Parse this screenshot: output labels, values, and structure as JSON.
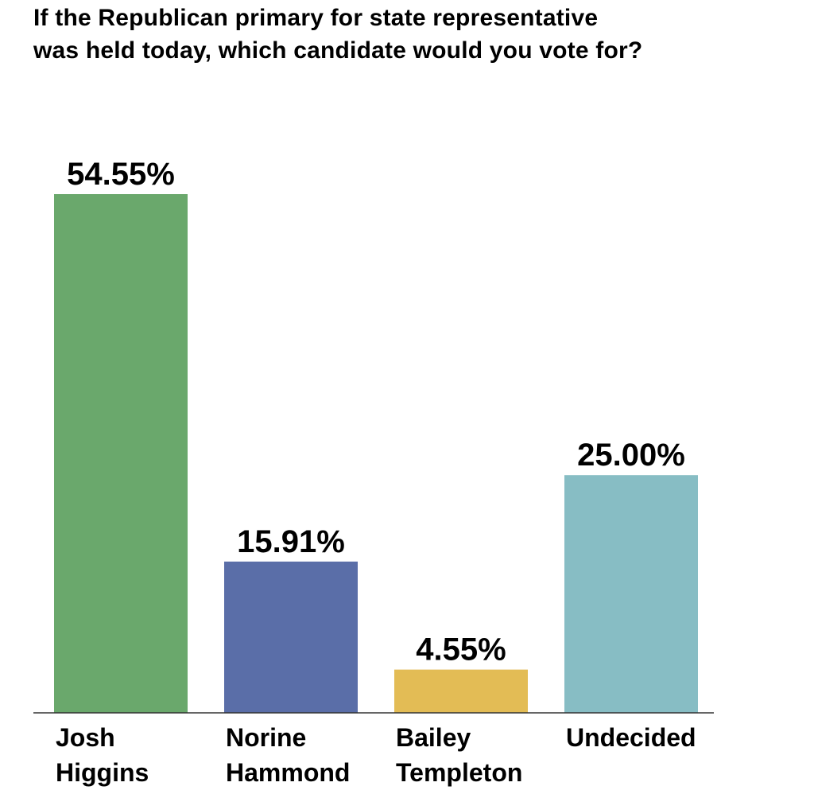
{
  "chart_data": {
    "type": "bar",
    "title_lines": [
      "If the Republican primary for state representative",
      "was held today, which candidate would you vote for?"
    ],
    "categories": [
      [
        "Josh",
        "Higgins"
      ],
      [
        "Norine",
        "Hammond"
      ],
      [
        "Bailey",
        "Templeton"
      ],
      [
        "Undecided"
      ]
    ],
    "values": [
      54.55,
      15.91,
      4.55,
      25.0
    ],
    "value_labels": [
      "54.55%",
      "15.91%",
      "4.55%",
      "25.00%"
    ],
    "colors": [
      "#6aa86c",
      "#5a6ea8",
      "#e3bc55",
      "#87bdc4"
    ],
    "ylim": [
      0,
      60
    ],
    "grid": false,
    "legend": "none"
  }
}
